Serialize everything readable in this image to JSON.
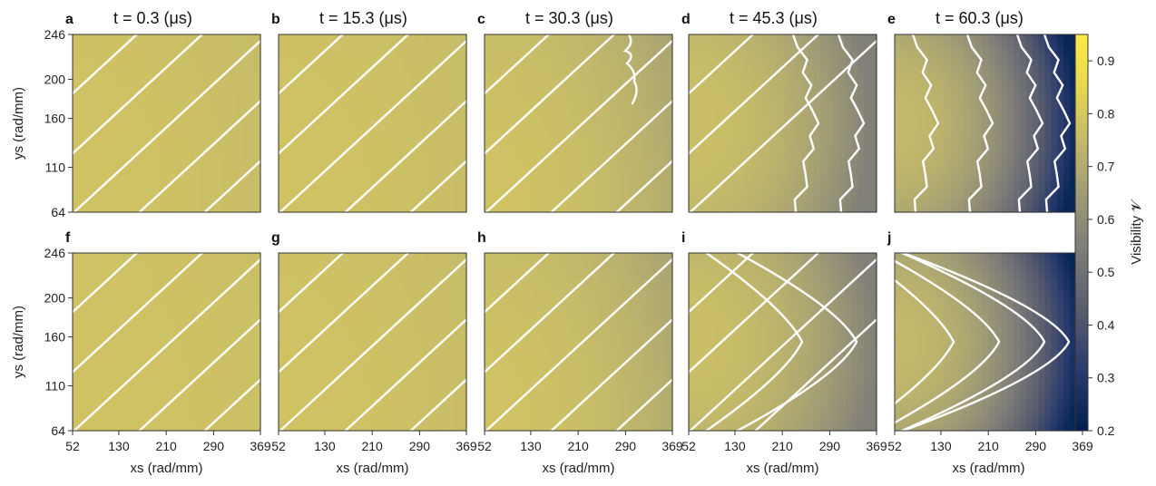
{
  "chart_data": {
    "type": "heatmap",
    "colormap": "cividis",
    "colorbar": {
      "label": "Visibility 𝓥",
      "range": [
        0.2,
        0.95
      ],
      "ticks": [
        "0.2",
        "0.3",
        "0.4",
        "0.5",
        "0.6",
        "0.7",
        "0.8",
        "0.9"
      ]
    },
    "x_axis": {
      "label": "xs (rad/mm)",
      "range": [
        52,
        369
      ],
      "ticks": [
        "52",
        "130",
        "210",
        "290",
        "369"
      ]
    },
    "y_axis": {
      "label": "ys (rad/mm)",
      "range": [
        64,
        246
      ],
      "ticks": [
        "64",
        "110",
        "160",
        "200",
        "246"
      ]
    },
    "panels": [
      {
        "label": "a",
        "title": "t = 0.3 (μs)",
        "row": 0,
        "center_value": 0.78,
        "edge_value": 0.76,
        "contours": "diagonal"
      },
      {
        "label": "b",
        "title": "t = 15.3 (μs)",
        "row": 0,
        "center_value": 0.78,
        "edge_value": 0.76,
        "contours": "diagonal"
      },
      {
        "label": "c",
        "title": "t = 30.3 (μs)",
        "row": 0,
        "center_value": 0.78,
        "edge_value": 0.68,
        "contours": "diagonal-noisy"
      },
      {
        "label": "d",
        "title": "t = 45.3 (μs)",
        "row": 0,
        "center_value": 0.77,
        "edge_value": 0.55,
        "contours": "noisy-arcs"
      },
      {
        "label": "e",
        "title": "t = 60.3 (μs)",
        "row": 0,
        "center_value": 0.75,
        "edge_value": 0.22,
        "contours": "noisy-arcs"
      },
      {
        "label": "f",
        "title": "",
        "row": 1,
        "center_value": 0.78,
        "edge_value": 0.77,
        "contours": "diagonal"
      },
      {
        "label": "g",
        "title": "",
        "row": 1,
        "center_value": 0.78,
        "edge_value": 0.76,
        "contours": "diagonal"
      },
      {
        "label": "h",
        "title": "",
        "row": 1,
        "center_value": 0.78,
        "edge_value": 0.68,
        "contours": "diagonal"
      },
      {
        "label": "i",
        "title": "",
        "row": 1,
        "center_value": 0.77,
        "edge_value": 0.55,
        "contours": "chevrons"
      },
      {
        "label": "j",
        "title": "",
        "row": 1,
        "center_value": 0.75,
        "edge_value": 0.22,
        "contours": "chevrons"
      }
    ]
  }
}
